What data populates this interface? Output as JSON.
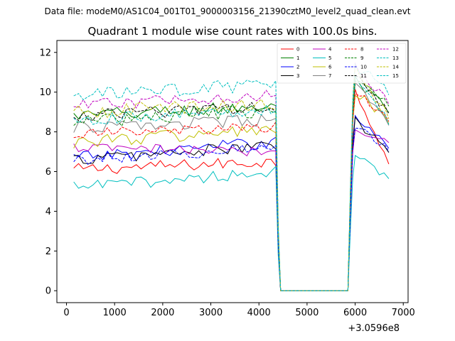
{
  "chart_data": {
    "type": "line",
    "suptitle": "Data file: modeM0/AS1C04_001T01_9000003156_21390cztM0_level2_quad_clean.evt",
    "title": "Quadrant 1 module wise count rates with 100.0s bins.",
    "xlabel": "",
    "ylabel": "",
    "x_offset_label": "+3.0596e8",
    "xlim": [
      -200,
      7100
    ],
    "ylim": [
      -0.6,
      12.6
    ],
    "xticks": [
      0,
      1000,
      2000,
      3000,
      4000,
      5000,
      6000,
      7000
    ],
    "yticks": [
      0,
      2,
      4,
      6,
      8,
      10,
      12
    ],
    "xtick_labels": [
      "0",
      "1000",
      "2000",
      "3000",
      "4000",
      "5000",
      "6000",
      "7000"
    ],
    "ytick_labels": [
      "0",
      "2",
      "4",
      "6",
      "8",
      "10",
      "12"
    ],
    "grid": false,
    "legend": {
      "placement": "top-right",
      "columns": 4
    },
    "segments": [
      {
        "x_start": 150,
        "x_end": 4350,
        "x_step": 100
      },
      {
        "x_values": [
          4400,
          4450,
          5850,
          5900,
          5950
        ]
      },
      {
        "x_start": 6000,
        "x_end": 6750,
        "x_step": 100
      }
    ],
    "series": [
      {
        "name": "0",
        "color": "#ff0000",
        "dash": "solid",
        "base": 6.1,
        "trend": 0.4,
        "amp": 0.3,
        "peak": 10.2,
        "tail": 6.4
      },
      {
        "name": "1",
        "color": "#008000",
        "dash": "solid",
        "base": 8.8,
        "trend": 0.5,
        "amp": 0.35,
        "peak": 10.6,
        "tail": 9.0
      },
      {
        "name": "2",
        "color": "#0000ff",
        "dash": "solid",
        "base": 6.7,
        "trend": 0.8,
        "amp": 0.3,
        "peak": 8.9,
        "tail": 7.2
      },
      {
        "name": "3",
        "color": "#000000",
        "dash": "solid",
        "base": 6.6,
        "trend": 0.7,
        "amp": 0.3,
        "peak": 8.6,
        "tail": 7.0
      },
      {
        "name": "4",
        "color": "#bf00bf",
        "dash": "solid",
        "base": 7.2,
        "trend": -0.2,
        "amp": 0.25,
        "peak": 8.2,
        "tail": 7.5
      },
      {
        "name": "5",
        "color": "#00bfbf",
        "dash": "solid",
        "base": 5.2,
        "trend": 0.8,
        "amp": 0.3,
        "peak": 6.7,
        "tail": 5.7
      },
      {
        "name": "6",
        "color": "#bfbf00",
        "dash": "solid",
        "base": 7.5,
        "trend": 0.6,
        "amp": 0.35,
        "peak": 10.0,
        "tail": 8.5
      },
      {
        "name": "7",
        "color": "#808080",
        "dash": "solid",
        "base": 8.2,
        "trend": 0.4,
        "amp": 0.3,
        "peak": 10.4,
        "tail": 8.4
      },
      {
        "name": "8",
        "color": "#ff0000",
        "dash": "dashed",
        "base": 7.9,
        "trend": 0.3,
        "amp": 0.3,
        "peak": 10.1,
        "tail": 8.6
      },
      {
        "name": "9",
        "color": "#008000",
        "dash": "dashed",
        "base": 8.5,
        "trend": 0.6,
        "amp": 0.35,
        "peak": 10.5,
        "tail": 9.4
      },
      {
        "name": "10",
        "color": "#0000ff",
        "dash": "dashed",
        "base": 6.6,
        "trend": 0.6,
        "amp": 0.3,
        "peak": 8.4,
        "tail": 7.1
      },
      {
        "name": "11",
        "color": "#000000",
        "dash": "dashed",
        "base": 8.8,
        "trend": 0.5,
        "amp": 0.3,
        "peak": 10.8,
        "tail": 9.0
      },
      {
        "name": "12",
        "color": "#bf00bf",
        "dash": "dashed",
        "base": 9.3,
        "trend": 0.6,
        "amp": 0.3,
        "peak": 11.2,
        "tail": 9.5
      },
      {
        "name": "13",
        "color": "#00bfbf",
        "dash": "dashed",
        "base": 9.8,
        "trend": 0.6,
        "amp": 0.35,
        "peak": 11.4,
        "tail": 10.0
      },
      {
        "name": "14",
        "color": "#bfbf00",
        "dash": "dashed",
        "base": 9.0,
        "trend": 0.4,
        "amp": 0.35,
        "peak": 11.1,
        "tail": 8.8
      },
      {
        "name": "15",
        "color": "#00bfbf",
        "dash": "dashed",
        "base": 8.6,
        "trend": 0.5,
        "amp": 0.3,
        "peak": 10.9,
        "tail": 8.5
      }
    ],
    "gap_value": 0.0
  }
}
